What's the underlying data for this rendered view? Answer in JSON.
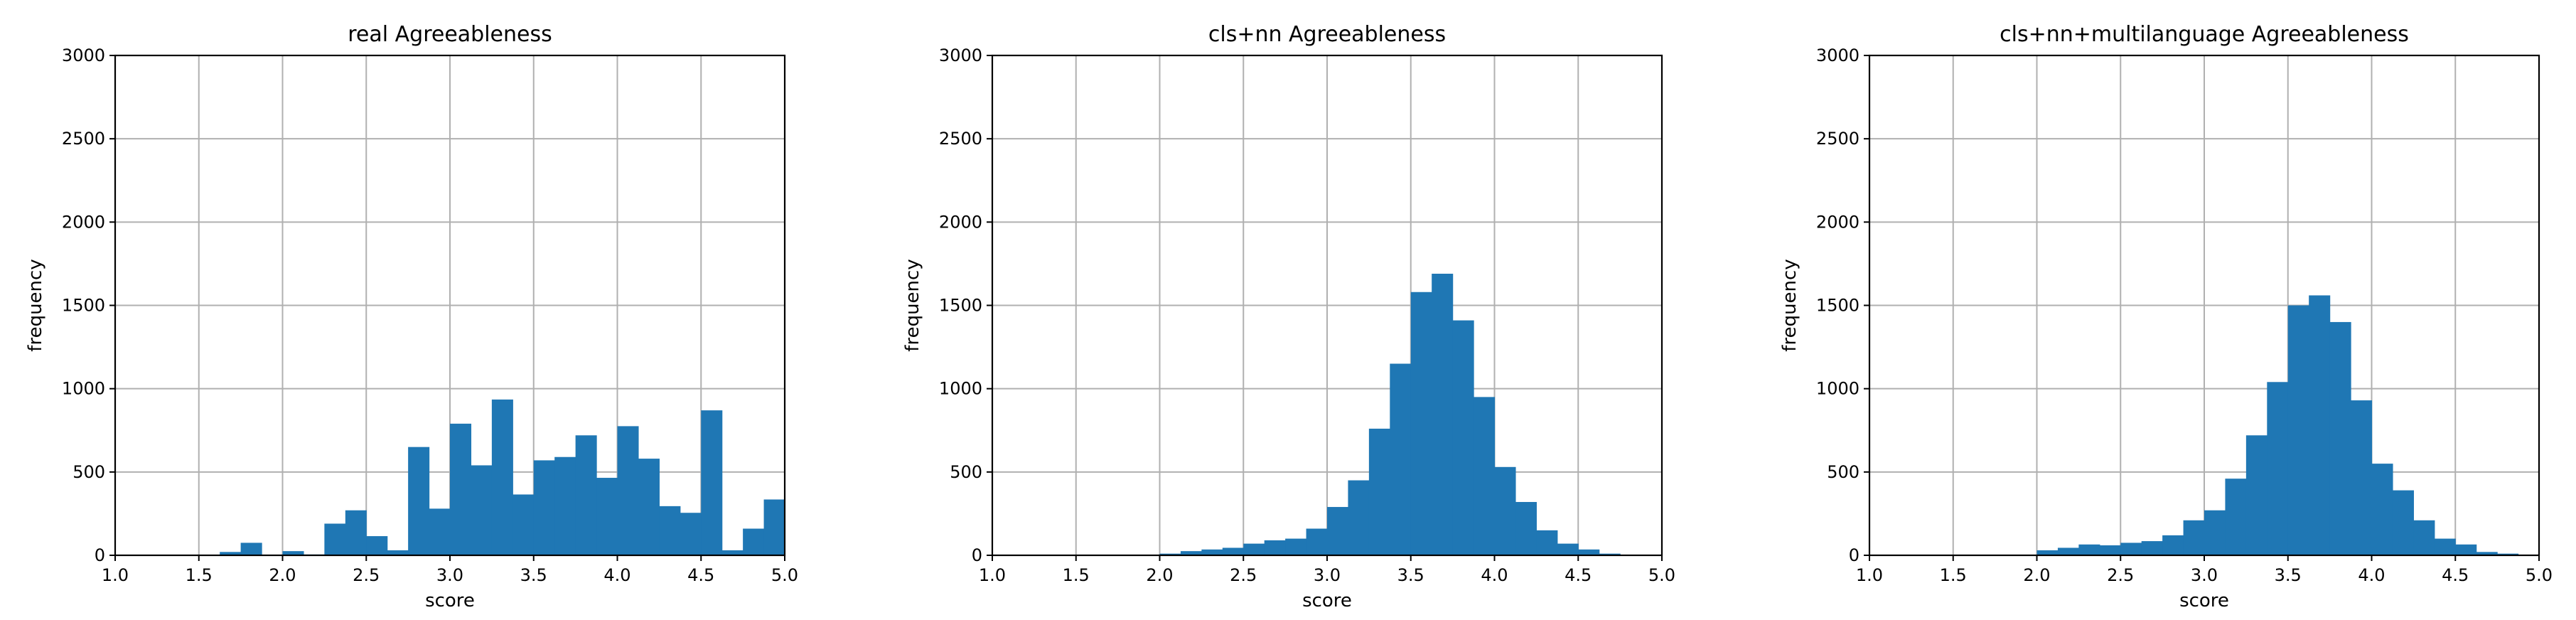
{
  "chart_data": [
    {
      "type": "bar",
      "title": "real Agreeableness",
      "xlabel": "score",
      "ylabel": "frequency",
      "xlim": [
        1.0,
        5.0
      ],
      "ylim": [
        0,
        3000
      ],
      "xticks": [
        "1.0",
        "1.5",
        "2.0",
        "2.5",
        "3.0",
        "3.5",
        "4.0",
        "4.5",
        "5.0"
      ],
      "yticks": [
        "0",
        "500",
        "1000",
        "1500",
        "2000",
        "2500",
        "3000"
      ],
      "grid": true,
      "color": "#1f77b4",
      "bin_start": 1.0,
      "bin_width": 0.125,
      "values": [
        0,
        0,
        0,
        0,
        0,
        20,
        75,
        0,
        25,
        5,
        190,
        270,
        115,
        30,
        650,
        280,
        790,
        540,
        935,
        365,
        570,
        590,
        720,
        465,
        775,
        580,
        295,
        255,
        870,
        30,
        160,
        335
      ]
    },
    {
      "type": "bar",
      "title": "cls+nn Agreeableness",
      "xlabel": "score",
      "ylabel": "frequency",
      "xlim": [
        1.0,
        5.0
      ],
      "ylim": [
        0,
        3000
      ],
      "xticks": [
        "1.0",
        "1.5",
        "2.0",
        "2.5",
        "3.0",
        "3.5",
        "4.0",
        "4.5",
        "5.0"
      ],
      "yticks": [
        "0",
        "500",
        "1000",
        "1500",
        "2000",
        "2500",
        "3000"
      ],
      "grid": true,
      "color": "#1f77b4",
      "bin_start": 1.0,
      "bin_width": 0.125,
      "values": [
        0,
        0,
        0,
        0,
        0,
        0,
        0,
        0,
        10,
        25,
        35,
        45,
        70,
        90,
        100,
        160,
        290,
        450,
        760,
        1150,
        1580,
        1690,
        1410,
        950,
        530,
        320,
        150,
        70,
        35,
        10,
        0,
        0
      ]
    },
    {
      "type": "bar",
      "title": "cls+nn+multilanguage Agreeableness",
      "xlabel": "score",
      "ylabel": "frequency",
      "xlim": [
        1.0,
        5.0
      ],
      "ylim": [
        0,
        3000
      ],
      "xticks": [
        "1.0",
        "1.5",
        "2.0",
        "2.5",
        "3.0",
        "3.5",
        "4.0",
        "4.5",
        "5.0"
      ],
      "yticks": [
        "0",
        "500",
        "1000",
        "1500",
        "2000",
        "2500",
        "3000"
      ],
      "grid": true,
      "color": "#1f77b4",
      "bin_start": 1.0,
      "bin_width": 0.125,
      "values": [
        0,
        0,
        0,
        0,
        0,
        0,
        0,
        0,
        30,
        45,
        65,
        60,
        75,
        85,
        120,
        210,
        270,
        460,
        720,
        1040,
        1500,
        1560,
        1400,
        930,
        550,
        390,
        210,
        100,
        65,
        20,
        10,
        0
      ]
    }
  ]
}
